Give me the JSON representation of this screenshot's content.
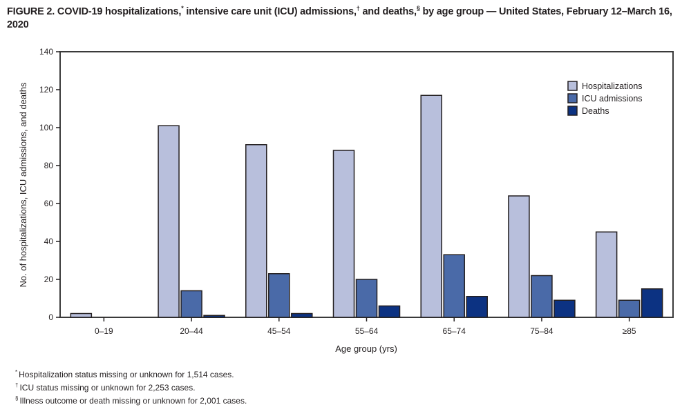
{
  "figure": {
    "title_parts": {
      "lead": "FIGURE 2. COVID-19 hospitalizations,",
      "mark1": "*",
      "mid1": " intensive care unit (ICU) admissions,",
      "mark2": "†",
      "mid2": " and deaths,",
      "mark3": "§",
      "tail": " by age group — United States, February 12–March 16, 2020"
    }
  },
  "chart_data": {
    "type": "bar",
    "title": "COVID-19 hospitalizations, intensive care unit (ICU) admissions, and deaths, by age group — United States, February 12–March 16, 2020",
    "xlabel": "Age group (yrs)",
    "ylabel": "No. of hospitalizations, ICU admissions, and deaths",
    "ylim": [
      0,
      140
    ],
    "yticks": [
      0,
      20,
      40,
      60,
      80,
      100,
      120,
      140
    ],
    "grid": false,
    "legend_position": "top-right",
    "categories": [
      "0–19",
      "20–44",
      "45–54",
      "55–64",
      "65–74",
      "75–84",
      "≥85"
    ],
    "series": [
      {
        "name": "Hospitalizations",
        "color": "#b8bfdc",
        "values": [
          2,
          101,
          91,
          88,
          117,
          64,
          45
        ]
      },
      {
        "name": "ICU admissions",
        "color": "#4a6aa8",
        "values": [
          0,
          14,
          23,
          20,
          33,
          22,
          9
        ]
      },
      {
        "name": "Deaths",
        "color": "#0c3282",
        "values": [
          0,
          1,
          2,
          6,
          11,
          9,
          15
        ]
      }
    ]
  },
  "footnotes": [
    {
      "mark": "*",
      "text": "Hospitalization status missing or unknown for 1,514 cases."
    },
    {
      "mark": "†",
      "text": "ICU status missing or unknown for 2,253 cases."
    },
    {
      "mark": "§",
      "text": "Illness outcome or death missing or unknown for 2,001 cases."
    }
  ]
}
